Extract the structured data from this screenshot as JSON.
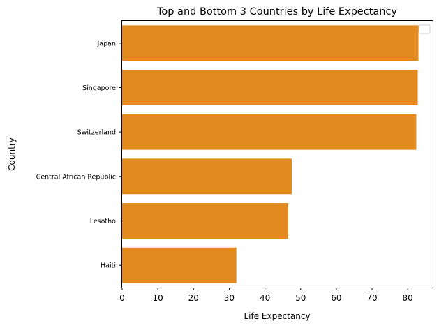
{
  "chart_data": {
    "type": "bar",
    "orientation": "horizontal",
    "title": "Top and Bottom 3 Countries by Life Expectancy",
    "xlabel": "Life Expectancy",
    "ylabel": "Country",
    "categories": [
      "Japan",
      "Singapore",
      "Switzerland",
      "Central African Republic",
      "Lesotho",
      "Haiti"
    ],
    "values": [
      83.0,
      82.8,
      82.4,
      47.5,
      46.5,
      32.0
    ],
    "xlim": [
      0,
      87
    ],
    "xticks": [
      "0",
      "10",
      "20",
      "30",
      "40",
      "50",
      "60",
      "70",
      "80"
    ],
    "grid": false,
    "legend": "top-right (empty)",
    "colors": {
      "bar": "#e28a1d",
      "axis": "#000000"
    }
  }
}
